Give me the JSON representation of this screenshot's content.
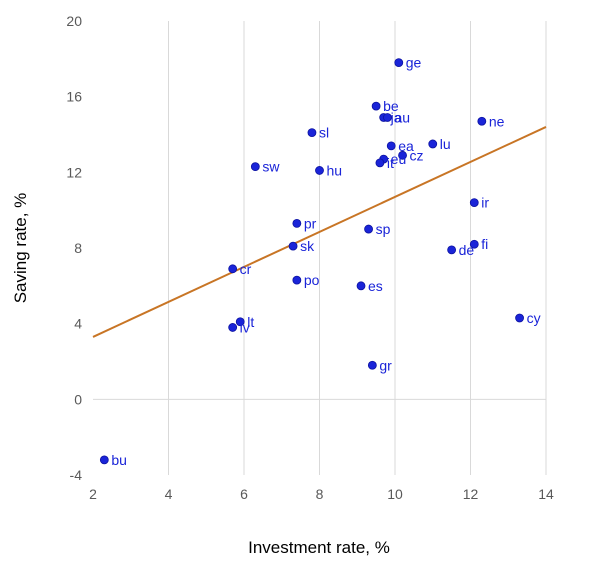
{
  "chart_data": {
    "type": "scatter",
    "xlabel": "Investment rate, %",
    "ylabel": "Saving rate, %",
    "xlim": [
      2,
      14
    ],
    "ylim": [
      -4,
      20
    ],
    "xticks": [
      2,
      4,
      6,
      8,
      10,
      12,
      14
    ],
    "yticks": [
      -4,
      0,
      4,
      8,
      12,
      16,
      20
    ],
    "grid": "vertical",
    "legend": "none",
    "points": [
      {
        "label": "ge",
        "x": 10.1,
        "y": 17.8
      },
      {
        "label": "be",
        "x": 9.5,
        "y": 15.5
      },
      {
        "label": "ja",
        "x": 9.7,
        "y": 14.9
      },
      {
        "label": "au",
        "x": 9.8,
        "y": 14.9
      },
      {
        "label": "ne",
        "x": 12.3,
        "y": 14.7
      },
      {
        "label": "sl",
        "x": 7.8,
        "y": 14.1
      },
      {
        "label": "lu",
        "x": 11.0,
        "y": 13.5
      },
      {
        "label": "ea",
        "x": 9.9,
        "y": 13.4
      },
      {
        "label": "cz",
        "x": 10.2,
        "y": 12.9
      },
      {
        "label": "eu",
        "x": 9.7,
        "y": 12.7
      },
      {
        "label": "it",
        "x": 9.6,
        "y": 12.5
      },
      {
        "label": "sw",
        "x": 6.3,
        "y": 12.3
      },
      {
        "label": "hu",
        "x": 8.0,
        "y": 12.1
      },
      {
        "label": "ir",
        "x": 12.1,
        "y": 10.4
      },
      {
        "label": "pr",
        "x": 7.4,
        "y": 9.3
      },
      {
        "label": "sp",
        "x": 9.3,
        "y": 9.0
      },
      {
        "label": "fi",
        "x": 12.1,
        "y": 8.2
      },
      {
        "label": "sk",
        "x": 7.3,
        "y": 8.1
      },
      {
        "label": "de",
        "x": 11.5,
        "y": 7.9
      },
      {
        "label": "cr",
        "x": 5.7,
        "y": 6.9
      },
      {
        "label": "po",
        "x": 7.4,
        "y": 6.3
      },
      {
        "label": "es",
        "x": 9.1,
        "y": 6.0
      },
      {
        "label": "cy",
        "x": 13.3,
        "y": 4.3
      },
      {
        "label": "lt",
        "x": 5.9,
        "y": 4.1
      },
      {
        "label": "lv",
        "x": 5.7,
        "y": 3.8
      },
      {
        "label": "gr",
        "x": 9.4,
        "y": 1.8
      },
      {
        "label": "bu",
        "x": 2.3,
        "y": -3.2
      }
    ],
    "trendline": {
      "x": [
        2,
        14
      ],
      "y": [
        3.3,
        14.4
      ]
    },
    "colors": {
      "points": "#1a24d8",
      "labels": "#1a24d8",
      "trendline": "#c87525",
      "grid": "#d9d9d9"
    }
  }
}
